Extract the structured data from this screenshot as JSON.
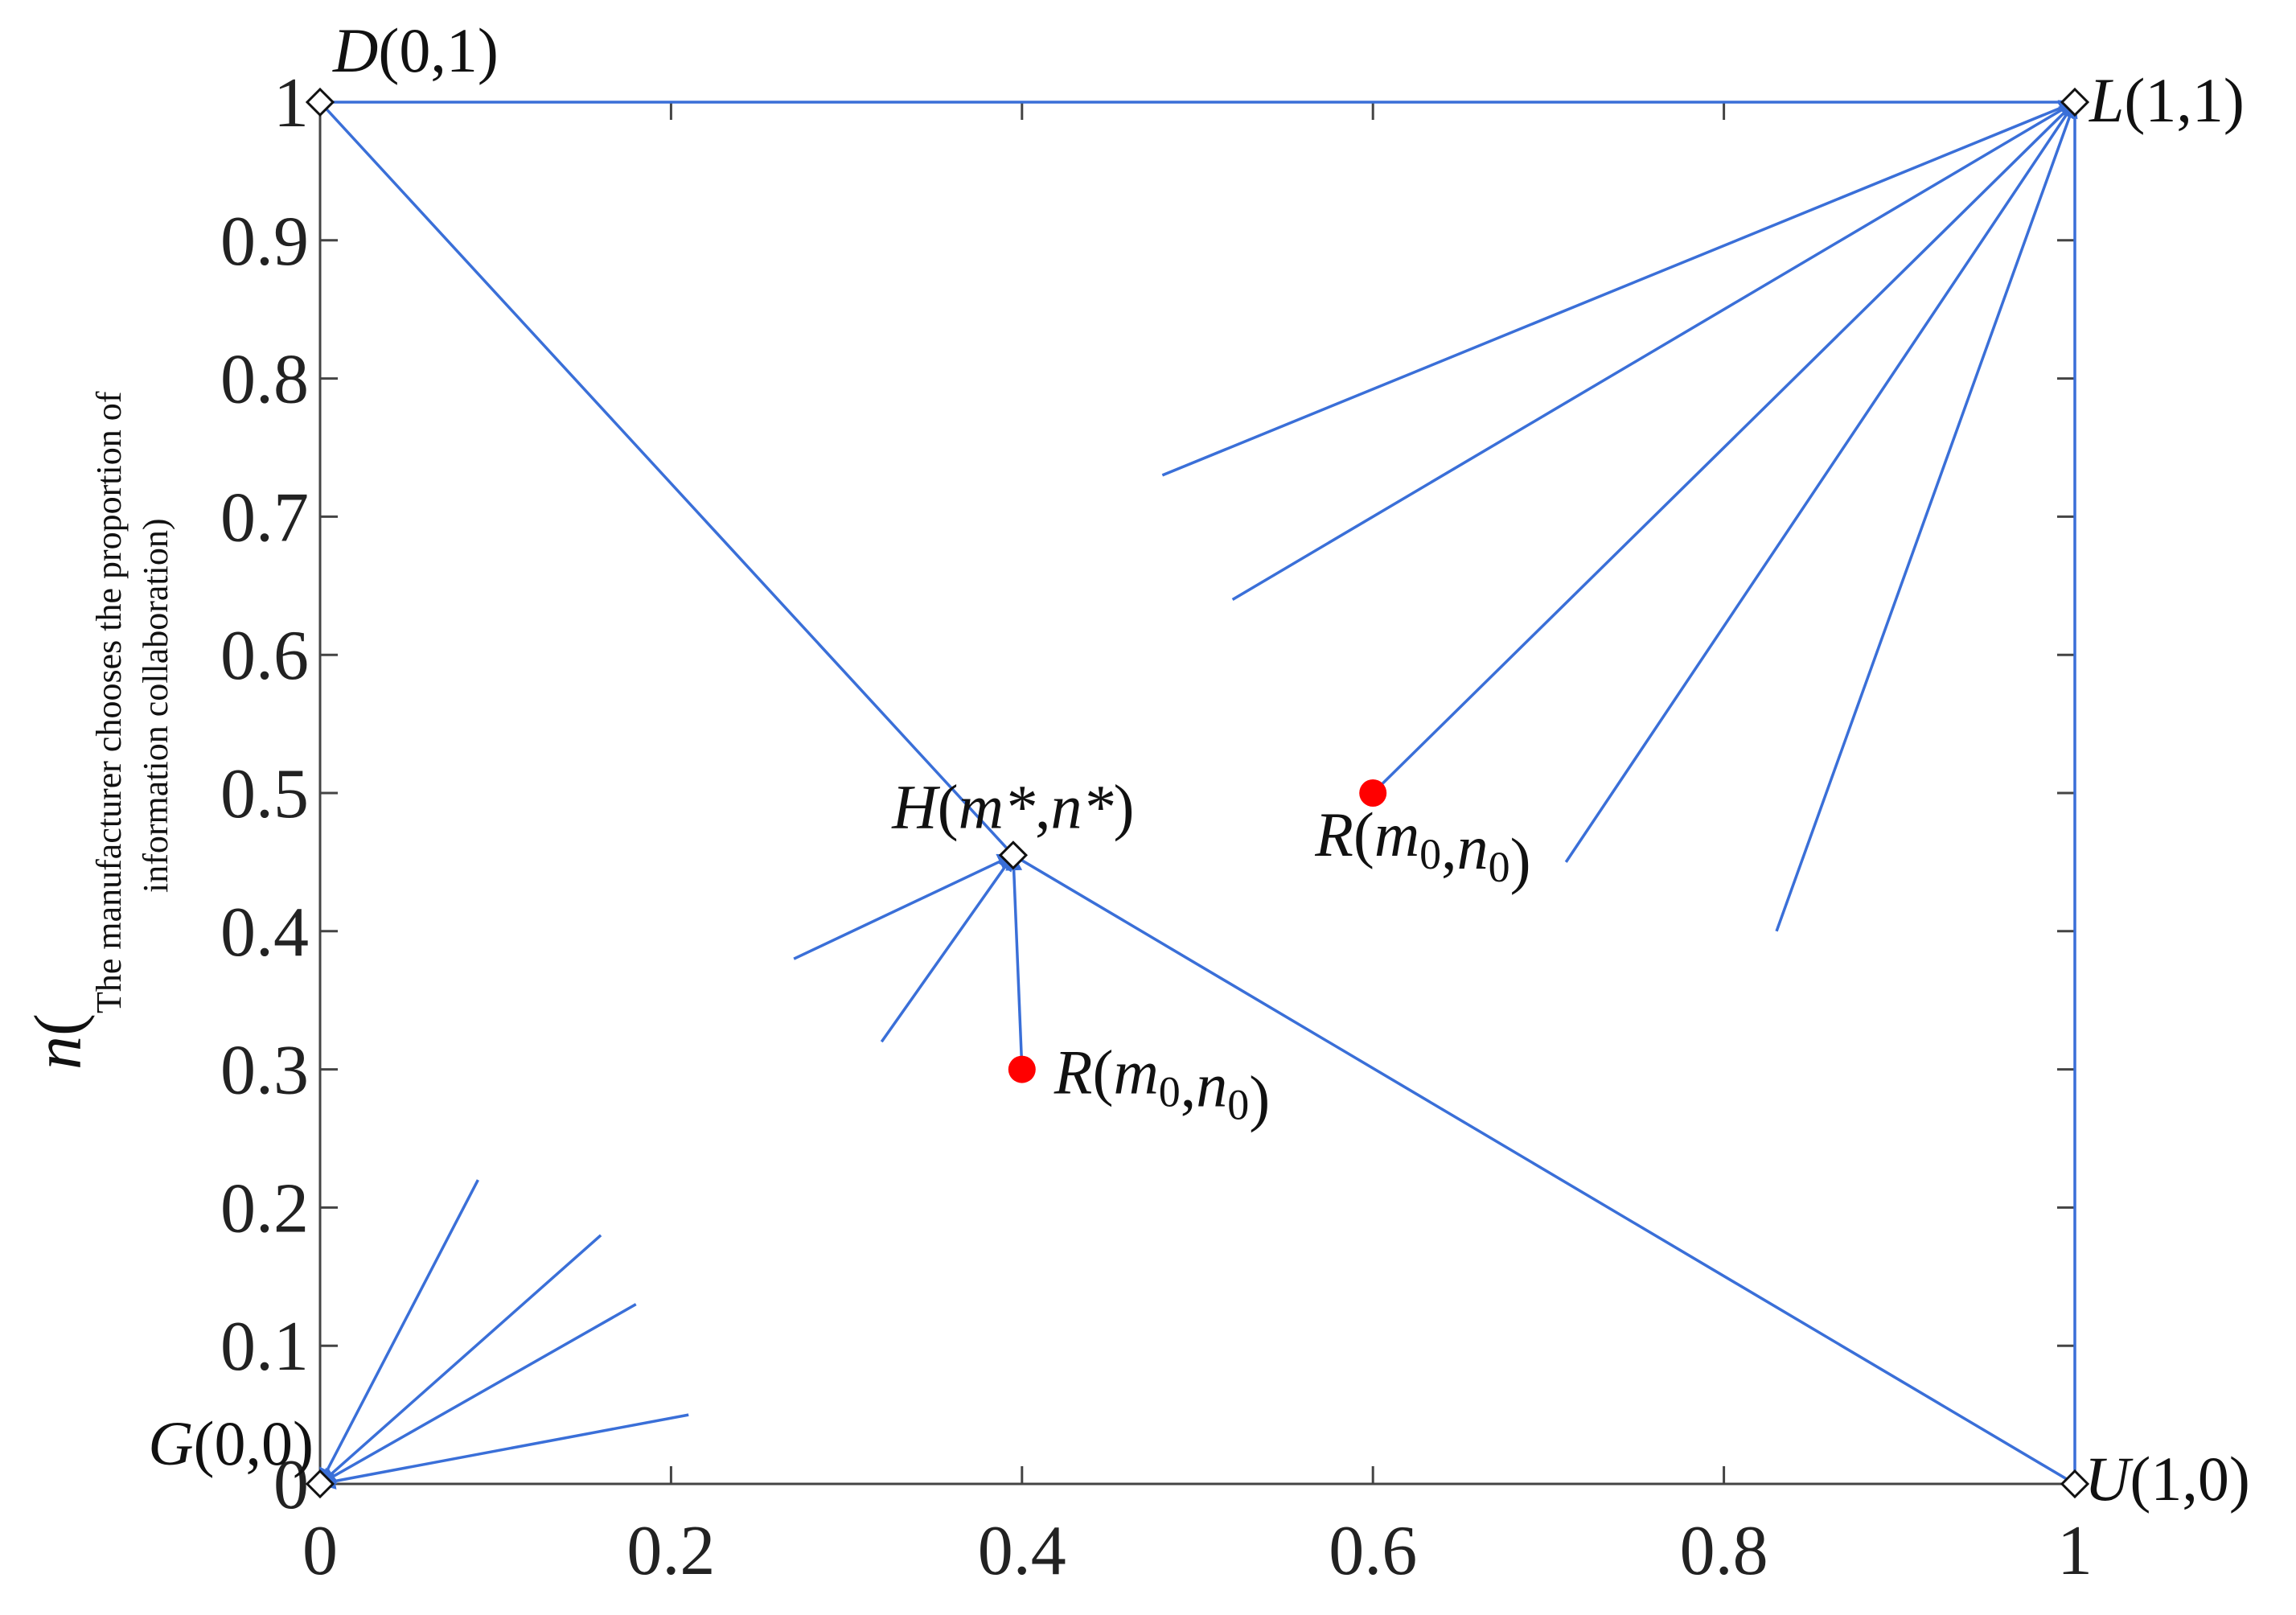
{
  "chart_data": {
    "type": "scatter",
    "title": "",
    "xlabel": "",
    "ylabel_prefix": "n(",
    "ylabel_lines": [
      "The manufacturer chooses the proportion of",
      "information collaboration)"
    ],
    "xlim": [
      0,
      1
    ],
    "ylim": [
      0,
      1
    ],
    "x_ticks": [
      0,
      0.2,
      0.4,
      0.6,
      0.8,
      1
    ],
    "x_tick_labels": [
      "0",
      "0.2",
      "0.4",
      "0.6",
      "0.8",
      "1"
    ],
    "y_ticks": [
      0,
      0.1,
      0.2,
      0.3,
      0.4,
      0.5,
      0.6,
      0.7,
      0.8,
      0.9,
      1
    ],
    "y_tick_labels": [
      "0",
      "0.1",
      "0.2",
      "0.3",
      "0.4",
      "0.5",
      "0.6",
      "0.7",
      "0.8",
      "0.9",
      "1"
    ],
    "grid": false,
    "colors": {
      "line": "#3a6fd8",
      "point": "#ff0000",
      "axis": "#444444",
      "text": "#111111"
    },
    "equilibrium_points": [
      {
        "x": 0,
        "y": 1,
        "label": [
          "D",
          "(0,1)"
        ]
      },
      {
        "x": 1,
        "y": 1,
        "label": [
          "L",
          "(1,1)"
        ]
      },
      {
        "x": 0,
        "y": 0,
        "label": [
          "G",
          "(0,0)"
        ]
      },
      {
        "x": 1,
        "y": 0,
        "label": [
          "U",
          "(1,0)"
        ]
      },
      {
        "x": 0.395,
        "y": 0.455,
        "label": [
          "H",
          "(m*,n*)"
        ]
      }
    ],
    "initial_points": [
      {
        "x": 0.4,
        "y": 0.3,
        "label": [
          "R",
          "(m",
          "0",
          ",n",
          "0",
          ")"
        ]
      },
      {
        "x": 0.6,
        "y": 0.5,
        "label": [
          "R",
          "(m",
          "0",
          ",n",
          "0",
          ")"
        ]
      }
    ],
    "boundary_segments": [
      {
        "from": [
          0,
          1
        ],
        "to": [
          1,
          1
        ]
      },
      {
        "from": [
          1,
          0
        ],
        "to": [
          1,
          1
        ]
      },
      {
        "from": [
          0,
          1
        ],
        "to": [
          0.395,
          0.455
        ]
      },
      {
        "from": [
          1,
          0
        ],
        "to": [
          0.395,
          0.455
        ]
      }
    ],
    "trajectories": [
      {
        "from": [
          0.48,
          0.73
        ],
        "to": [
          1,
          1
        ]
      },
      {
        "from": [
          0.52,
          0.64
        ],
        "to": [
          1,
          1
        ]
      },
      {
        "from": [
          0.6,
          0.5
        ],
        "to": [
          1,
          1
        ]
      },
      {
        "from": [
          0.71,
          0.45
        ],
        "to": [
          1,
          1
        ]
      },
      {
        "from": [
          0.83,
          0.4
        ],
        "to": [
          1,
          1
        ]
      },
      {
        "from": [
          0.27,
          0.38
        ],
        "to": [
          0.395,
          0.455
        ]
      },
      {
        "from": [
          0.32,
          0.32
        ],
        "to": [
          0.395,
          0.455
        ]
      },
      {
        "from": [
          0.4,
          0.3
        ],
        "to": [
          0.395,
          0.455
        ]
      },
      {
        "from": [
          0.09,
          0.22
        ],
        "to": [
          0,
          0
        ]
      },
      {
        "from": [
          0.16,
          0.18
        ],
        "to": [
          0,
          0
        ]
      },
      {
        "from": [
          0.18,
          0.13
        ],
        "to": [
          0,
          0
        ]
      },
      {
        "from": [
          0.21,
          0.05
        ],
        "to": [
          0,
          0
        ]
      }
    ]
  }
}
